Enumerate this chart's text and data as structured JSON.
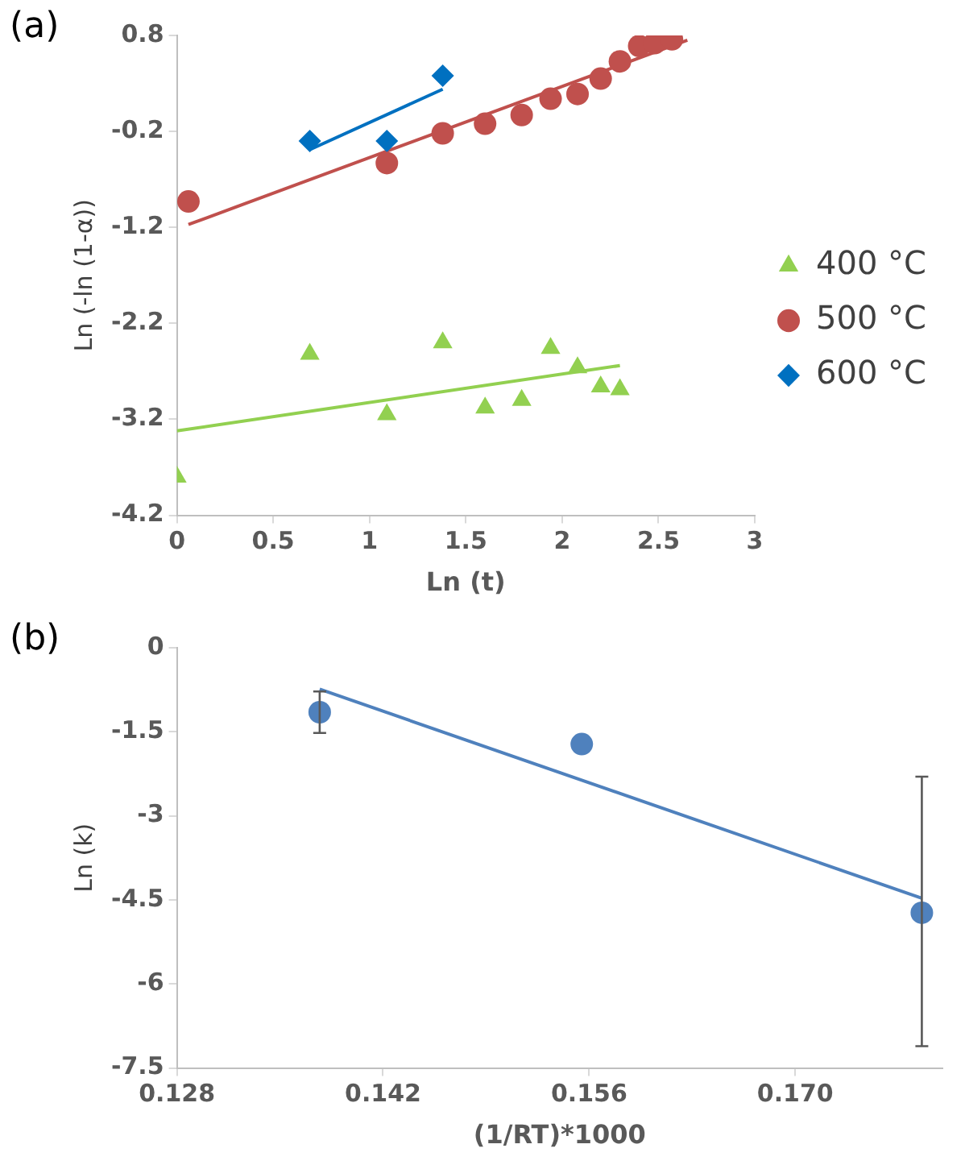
{
  "chart_data": [
    {
      "type": "scatter",
      "title": "(a)",
      "xlabel": "Ln (t)",
      "ylabel": "Ln (-ln (1-α))",
      "xlim": [
        0,
        3
      ],
      "xticks": [
        0,
        0.5,
        1,
        1.5,
        2,
        2.5,
        3
      ],
      "ylim": [
        -4.2,
        0.8
      ],
      "yticks": [
        -4.2,
        -3.2,
        -2.2,
        -1.2,
        -0.2,
        0.8
      ],
      "legend": "right",
      "grid": false,
      "series": [
        {
          "name": "400 °C",
          "color": "#92d050",
          "marker": "triangle",
          "x": [
            0,
            0.69,
            1.09,
            1.38,
            1.6,
            1.79,
            1.94,
            2.08,
            2.2,
            2.3
          ],
          "values": [
            -3.8,
            -2.52,
            -3.15,
            -2.4,
            -3.08,
            -3,
            -2.46,
            -2.66,
            -2.86,
            -2.89
          ]
        },
        {
          "name": "500 °C",
          "color": "#c0504d",
          "marker": "circle",
          "x": [
            0.06,
            1.09,
            1.38,
            1.6,
            1.79,
            1.94,
            2.08,
            2.2,
            2.3,
            2.4,
            2.48,
            2.57
          ],
          "values": [
            -0.93,
            -0.53,
            -0.22,
            -0.12,
            -0.03,
            0.14,
            0.19,
            0.35,
            0.53,
            0.69,
            0.72,
            0.76
          ]
        },
        {
          "name": "600 °C",
          "color": "#0070c0",
          "marker": "diamond",
          "x": [
            0.69,
            1.09,
            1.38
          ],
          "values": [
            -0.3,
            -0.3,
            0.38
          ]
        },
        {
          "type": "line",
          "color": "#92d050",
          "x": [
            0,
            2.3
          ],
          "values": [
            -3.32,
            -2.64
          ]
        },
        {
          "type": "line",
          "color": "#c0504d",
          "x": [
            0.06,
            2.65
          ],
          "values": [
            -1.17,
            0.75
          ]
        },
        {
          "type": "line",
          "color": "#0070c0",
          "x": [
            0.69,
            1.38
          ],
          "values": [
            -0.39,
            0.24
          ]
        }
      ]
    },
    {
      "type": "scatter",
      "title": "(b)",
      "xlabel": "(1/RT)*1000",
      "ylabel": "Ln (k)",
      "xlim": [
        0.128,
        0.18
      ],
      "xticks": [
        0.128,
        0.142,
        0.156,
        {
          "value": 0.17,
          "label": "0.170"
        }
      ],
      "ylim": [
        -7.5,
        0
      ],
      "yticks": [
        0,
        -1.5,
        -3,
        -4.5,
        -6,
        -7.5
      ],
      "grid": false,
      "series": [
        {
          "color": "#4f81bd",
          "marker": "circle",
          "x": [
            0.1377,
            0.1555,
            0.1786
          ],
          "values": [
            -1.15,
            -1.72,
            -4.73
          ],
          "errors": [
            0.37,
            null,
            [
              -7.11,
              -2.3
            ]
          ]
        },
        {
          "type": "line",
          "color": "#4f81bd",
          "x": [
            0.1377,
            0.1786
          ],
          "values": [
            -0.74,
            -4.47
          ]
        }
      ]
    }
  ]
}
